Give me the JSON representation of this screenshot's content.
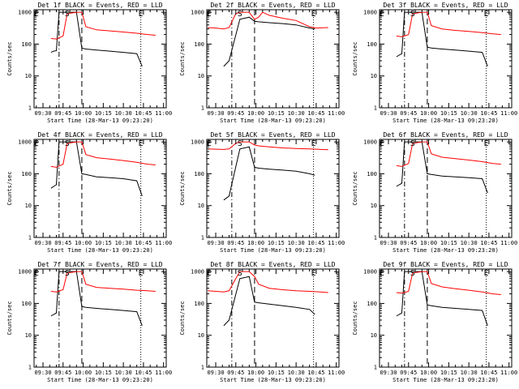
{
  "chart_data": {
    "type": "line",
    "xlabel": "Start Time (28-Mar-13 09:23:20)",
    "ylabel": "Counts/sec",
    "x_tick_labels": [
      "09:30",
      "09:45",
      "10:00",
      "10:15",
      "10:30",
      "10:45",
      "11:00"
    ],
    "x_tick_minutes": [
      30,
      45,
      60,
      75,
      90,
      105,
      120
    ],
    "x_range_minutes": [
      23.33,
      122
    ],
    "y_scale": "log",
    "y_tick_labels": [
      "1",
      "10",
      "100",
      "1000"
    ],
    "y_tick_values": [
      1,
      10,
      100,
      1000
    ],
    "ylim": [
      1,
      1200
    ],
    "grid": false,
    "colors": {
      "events": "#000000",
      "lld": "#ff0000",
      "axes": "#000000"
    },
    "annotations": [
      {
        "text": "S",
        "minute": 48,
        "style": "solid"
      },
      {
        "text": "E",
        "minute": 25,
        "style": "dotted"
      },
      {
        "text": "E",
        "minute": 103,
        "style": "dotted"
      }
    ],
    "vertical_lines": [
      {
        "minute": 42,
        "style": "dash-dot"
      },
      {
        "minute": 59,
        "style": "dashed"
      },
      {
        "minute": 103,
        "style": "dotted"
      }
    ],
    "panels": [
      {
        "title": "Det 1f BLACK = Events, RED = LLD",
        "series": [
          {
            "key": "events",
            "x": [
              36,
              38,
              40,
              42,
              55,
              59,
              62,
              70,
              80,
              90,
              100,
              104
            ],
            "y": [
              55,
              60,
              62,
              1000,
              1000,
              75,
              70,
              65,
              60,
              55,
              50,
              20
            ]
          },
          {
            "key": "lld",
            "x": [
              36,
              40,
              45,
              48,
              55,
              59,
              62,
              70,
              80,
              90,
              100,
              108,
              114
            ],
            "y": [
              150,
              145,
              180,
              900,
              1000,
              1000,
              350,
              280,
              260,
              240,
              220,
              200,
              190
            ]
          }
        ]
      },
      {
        "title": "Det 2f BLACK = Events, RED = LLD",
        "series": [
          {
            "key": "events",
            "x": [
              36,
              40,
              48,
              55,
              59,
              62,
              70,
              80,
              90,
              100,
              104
            ],
            "y": [
              20,
              30,
              600,
              700,
              520,
              500,
              470,
              440,
              400,
              320,
              300
            ]
          },
          {
            "key": "lld",
            "x": [
              24,
              30,
              36,
              40,
              45,
              48,
              55,
              59,
              62,
              65,
              70,
              80,
              90,
              100,
              105,
              114
            ],
            "y": [
              330,
              320,
              300,
              330,
              900,
              1000,
              1000,
              600,
              700,
              1000,
              800,
              650,
              550,
              350,
              320,
              330
            ]
          }
        ]
      },
      {
        "title": "Det 3f BLACK = Events, RED = LLD",
        "series": [
          {
            "key": "events",
            "x": [
              36,
              38,
              40,
              42,
              55,
              59,
              62,
              70,
              80,
              90,
              100,
              104
            ],
            "y": [
              40,
              45,
              50,
              1000,
              1000,
              80,
              75,
              70,
              65,
              60,
              55,
              20
            ]
          },
          {
            "key": "lld",
            "x": [
              36,
              40,
              45,
              48,
              55,
              59,
              62,
              70,
              80,
              90,
              100,
              108,
              114
            ],
            "y": [
              180,
              170,
              200,
              900,
              1000,
              1000,
              380,
              300,
              270,
              250,
              230,
              210,
              200
            ]
          }
        ]
      },
      {
        "title": "Det 4f BLACK = Events, RED = LLD",
        "series": [
          {
            "key": "events",
            "x": [
              36,
              38,
              40,
              42,
              55,
              59,
              62,
              70,
              80,
              90,
              100,
              104
            ],
            "y": [
              35,
              40,
              45,
              1000,
              1000,
              100,
              95,
              80,
              75,
              70,
              60,
              20
            ]
          },
          {
            "key": "lld",
            "x": [
              36,
              40,
              45,
              48,
              55,
              59,
              62,
              70,
              80,
              90,
              100,
              108,
              114
            ],
            "y": [
              170,
              160,
              200,
              900,
              1000,
              1000,
              400,
              320,
              290,
              260,
              230,
              200,
              190
            ]
          }
        ]
      },
      {
        "title": "Det 5f BLACK = Events, RED = LLD",
        "series": [
          {
            "key": "events",
            "x": [
              36,
              40,
              48,
              55,
              59,
              62,
              70,
              80,
              90,
              100,
              104
            ],
            "y": [
              15,
              20,
              600,
              700,
              160,
              150,
              140,
              130,
              120,
              100,
              90
            ]
          },
          {
            "key": "lld",
            "x": [
              24,
              30,
              36,
              40,
              45,
              48,
              55,
              59,
              62,
              70,
              80,
              90,
              100,
              108,
              114
            ],
            "y": [
              600,
              590,
              580,
              600,
              900,
              1000,
              1000,
              800,
              750,
              700,
              650,
              620,
              600,
              580,
              570
            ]
          }
        ]
      },
      {
        "title": "Det 6f BLACK = Events, RED = LLD",
        "series": [
          {
            "key": "events",
            "x": [
              36,
              38,
              40,
              42,
              55,
              59,
              62,
              70,
              80,
              90,
              100,
              104
            ],
            "y": [
              40,
              45,
              50,
              1000,
              1000,
              100,
              95,
              85,
              80,
              75,
              70,
              25
            ]
          },
          {
            "key": "lld",
            "x": [
              36,
              40,
              45,
              48,
              55,
              59,
              62,
              70,
              80,
              90,
              100,
              108,
              114
            ],
            "y": [
              180,
              170,
              210,
              900,
              1000,
              1000,
              420,
              330,
              300,
              270,
              240,
              210,
              200
            ]
          }
        ]
      },
      {
        "title": "Det 7f BLACK = Events, RED = LLD",
        "series": [
          {
            "key": "events",
            "x": [
              36,
              38,
              40,
              42,
              55,
              59,
              62,
              70,
              80,
              90,
              100,
              104
            ],
            "y": [
              40,
              45,
              50,
              1000,
              1000,
              80,
              75,
              70,
              65,
              60,
              55,
              20
            ]
          },
          {
            "key": "lld",
            "x": [
              36,
              40,
              45,
              48,
              55,
              59,
              62,
              70,
              80,
              90,
              100,
              108,
              114
            ],
            "y": [
              240,
              230,
              270,
              900,
              1000,
              1000,
              400,
              320,
              300,
              280,
              260,
              250,
              240
            ]
          }
        ]
      },
      {
        "title": "Det 8f BLACK = Events, RED = LLD",
        "series": [
          {
            "key": "events",
            "x": [
              36,
              40,
              48,
              55,
              59,
              62,
              70,
              80,
              90,
              100,
              104
            ],
            "y": [
              20,
              30,
              600,
              700,
              110,
              105,
              95,
              85,
              75,
              65,
              45
            ]
          },
          {
            "key": "lld",
            "x": [
              24,
              30,
              36,
              40,
              45,
              48,
              55,
              59,
              62,
              70,
              80,
              90,
              100,
              108,
              114
            ],
            "y": [
              250,
              240,
              230,
              250,
              600,
              1000,
              1000,
              700,
              400,
              300,
              270,
              250,
              240,
              230,
              220
            ]
          }
        ]
      },
      {
        "title": "Det 9f BLACK = Events, RED = LLD",
        "series": [
          {
            "key": "events",
            "x": [
              36,
              38,
              40,
              42,
              55,
              59,
              62,
              70,
              80,
              90,
              100,
              104
            ],
            "y": [
              40,
              45,
              50,
              1000,
              1000,
              90,
              85,
              75,
              70,
              65,
              60,
              20
            ]
          },
          {
            "key": "lld",
            "x": [
              36,
              40,
              45,
              48,
              55,
              59,
              62,
              70,
              80,
              90,
              100,
              108,
              114
            ],
            "y": [
              220,
              210,
              240,
              900,
              1000,
              1000,
              420,
              330,
              290,
              260,
              230,
              200,
              190
            ]
          }
        ]
      }
    ]
  }
}
